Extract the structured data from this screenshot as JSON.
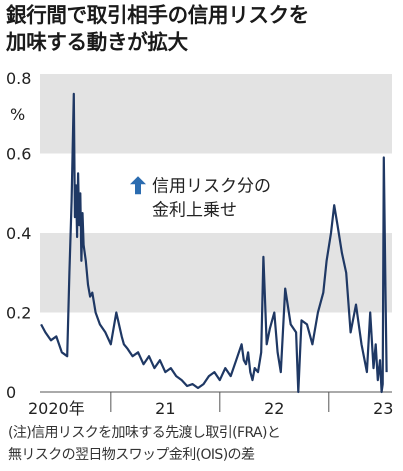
{
  "title_lines": [
    "銀行間で取引相手の信用リスクを",
    "加味する動きが拡大"
  ],
  "note_lines": [
    "(注)信用リスクを加味する先渡し取引(FRA)と",
    "無リスクの翌日物スワップ金利(OIS)の差"
  ],
  "colors": {
    "line": "#1f3864",
    "band": "#e3e3e3",
    "arrow": "#2b6cb0",
    "text": "#222222"
  },
  "chart_data": {
    "type": "line",
    "title": "銀行間で取引相手の信用リスクを加味する動きが拡大",
    "ylabel": "%",
    "ylim": [
      0,
      0.8
    ],
    "yticks": [
      "0.8",
      "0.6",
      "0.4",
      "0.2",
      "0"
    ],
    "ytick_values": [
      0.8,
      0.6,
      0.4,
      0.2,
      0
    ],
    "xlim": [
      2019.85,
      2023.08
    ],
    "xticks": [
      {
        "label": "2020年",
        "value": 2020.0
      },
      {
        "label": "21",
        "value": 2021.0
      },
      {
        "label": "22",
        "value": 2022.0
      },
      {
        "label": "23",
        "value": 2023.0
      }
    ],
    "year_boundaries": [
      2020.5,
      2021.5,
      2022.5
    ],
    "shaded_bands": [
      [
        0.6,
        0.8
      ],
      [
        0.2,
        0.4
      ]
    ],
    "annotation": {
      "icon": "up-arrow-icon",
      "lines": [
        "信用リスク分の",
        "金利上乗せ"
      ]
    },
    "series": [
      {
        "x": [
          2019.86,
          2019.9,
          2019.95,
          2020.0,
          2020.05,
          2020.1,
          2020.12,
          2020.14,
          2020.16,
          2020.17,
          2020.18,
          2020.19,
          2020.2,
          2020.21,
          2020.22,
          2020.23,
          2020.24,
          2020.25,
          2020.27,
          2020.29,
          2020.31,
          2020.33,
          2020.36,
          2020.4,
          2020.45,
          2020.5,
          2020.55,
          2020.6,
          2020.62,
          2020.65,
          2020.7,
          2020.75,
          2020.8,
          2020.85,
          2020.9,
          2020.95,
          2021.0,
          2021.05,
          2021.1,
          2021.15,
          2021.2,
          2021.25,
          2021.3,
          2021.35,
          2021.4,
          2021.45,
          2021.5,
          2021.55,
          2021.6,
          2021.65,
          2021.7,
          2021.72,
          2021.74,
          2021.76,
          2021.78,
          2021.8,
          2021.82,
          2021.85,
          2021.88,
          2021.9,
          2021.93,
          2021.96,
          2022.0,
          2022.03,
          2022.06,
          2022.1,
          2022.15,
          2022.2,
          2022.22,
          2022.25,
          2022.3,
          2022.35,
          2022.4,
          2022.45,
          2022.48,
          2022.52,
          2022.55,
          2022.58,
          2022.62,
          2022.66,
          2022.7,
          2022.75,
          2022.8,
          2022.85,
          2022.88,
          2022.91,
          2022.93,
          2022.95,
          2022.97,
          2022.985,
          2022.995,
          2023.005,
          2023.02,
          2023.03
        ],
        "y": [
          0.17,
          0.15,
          0.13,
          0.14,
          0.1,
          0.09,
          0.3,
          0.48,
          0.75,
          0.44,
          0.52,
          0.39,
          0.55,
          0.42,
          0.5,
          0.33,
          0.45,
          0.37,
          0.33,
          0.27,
          0.24,
          0.25,
          0.2,
          0.17,
          0.15,
          0.12,
          0.2,
          0.14,
          0.12,
          0.11,
          0.09,
          0.1,
          0.07,
          0.09,
          0.06,
          0.08,
          0.05,
          0.06,
          0.04,
          0.03,
          0.015,
          0.02,
          0.01,
          0.02,
          0.04,
          0.05,
          0.03,
          0.06,
          0.04,
          0.08,
          0.12,
          0.08,
          0.07,
          0.1,
          0.05,
          0.03,
          0.06,
          0.05,
          0.1,
          0.34,
          0.12,
          0.16,
          0.2,
          0.1,
          0.05,
          0.26,
          0.17,
          0.15,
          0.0,
          0.18,
          0.17,
          0.12,
          0.2,
          0.25,
          0.33,
          0.4,
          0.47,
          0.42,
          0.35,
          0.3,
          0.15,
          0.22,
          0.12,
          0.05,
          0.2,
          0.06,
          0.12,
          0.03,
          0.08,
          0.0,
          0.02,
          0.59,
          0.25,
          0.05
        ]
      }
    ]
  }
}
